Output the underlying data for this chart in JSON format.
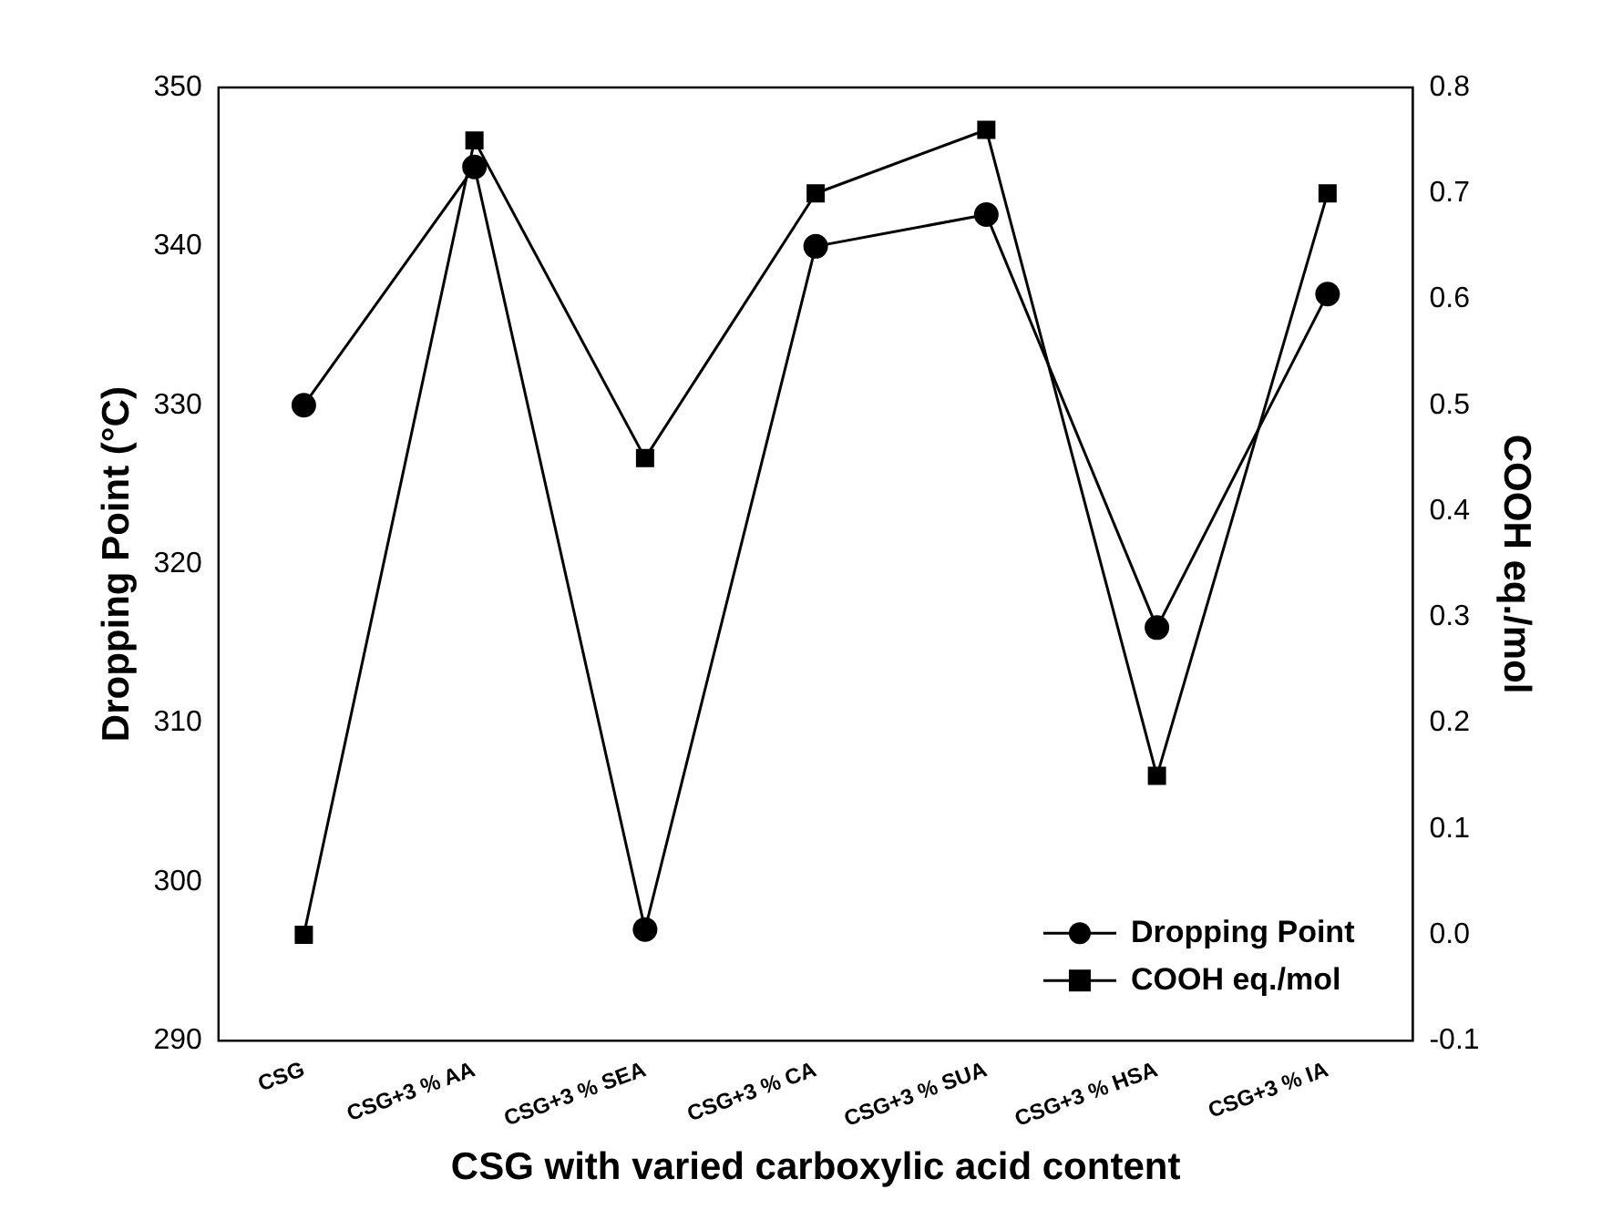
{
  "chart_data": {
    "type": "line",
    "xlabel": "CSG with varied carboxylic acid content",
    "ylabel": "Dropping Point (°C)",
    "y2label": "COOH eq./mol",
    "categories": [
      "CSG",
      "CSG+3 % AA",
      "CSG+3 % SEA",
      "CSG+3 % CA",
      "CSG+3 % SUA",
      "CSG+3 % HSA",
      "CSG+3 % IA"
    ],
    "series": [
      {
        "name": "Dropping Point",
        "color": "#000000",
        "marker": "circle",
        "values": [
          330,
          345,
          297,
          340,
          342,
          316,
          337
        ]
      },
      {
        "name": "COOH eq./mol",
        "color": "#000000",
        "marker": "square",
        "axis": "y2",
        "values": [
          0.0,
          0.75,
          0.45,
          0.7,
          0.76,
          0.15,
          0.7
        ]
      }
    ],
    "ylim": [
      290,
      350
    ],
    "yticks": [
      290,
      300,
      310,
      320,
      330,
      340,
      350
    ],
    "y2lim": [
      -0.1,
      0.8
    ],
    "y2ticks": [
      {
        "value": -0.1,
        "label": "-0.1"
      },
      {
        "value": 0,
        "label": "0.0"
      },
      {
        "value": 0.1,
        "label": "0.1"
      },
      {
        "value": 0.2,
        "label": "0.2"
      },
      {
        "value": 0.3,
        "label": "0.3"
      },
      {
        "value": 0.4,
        "label": "0.4"
      },
      {
        "value": 0.5,
        "label": "0.5"
      },
      {
        "value": 0.6,
        "label": "0.6"
      },
      {
        "value": 0.7,
        "label": "0.7"
      },
      {
        "value": 0.8,
        "label": "0.8"
      }
    ],
    "grid": false,
    "legend": "bottom right",
    "line_style": "solid"
  }
}
